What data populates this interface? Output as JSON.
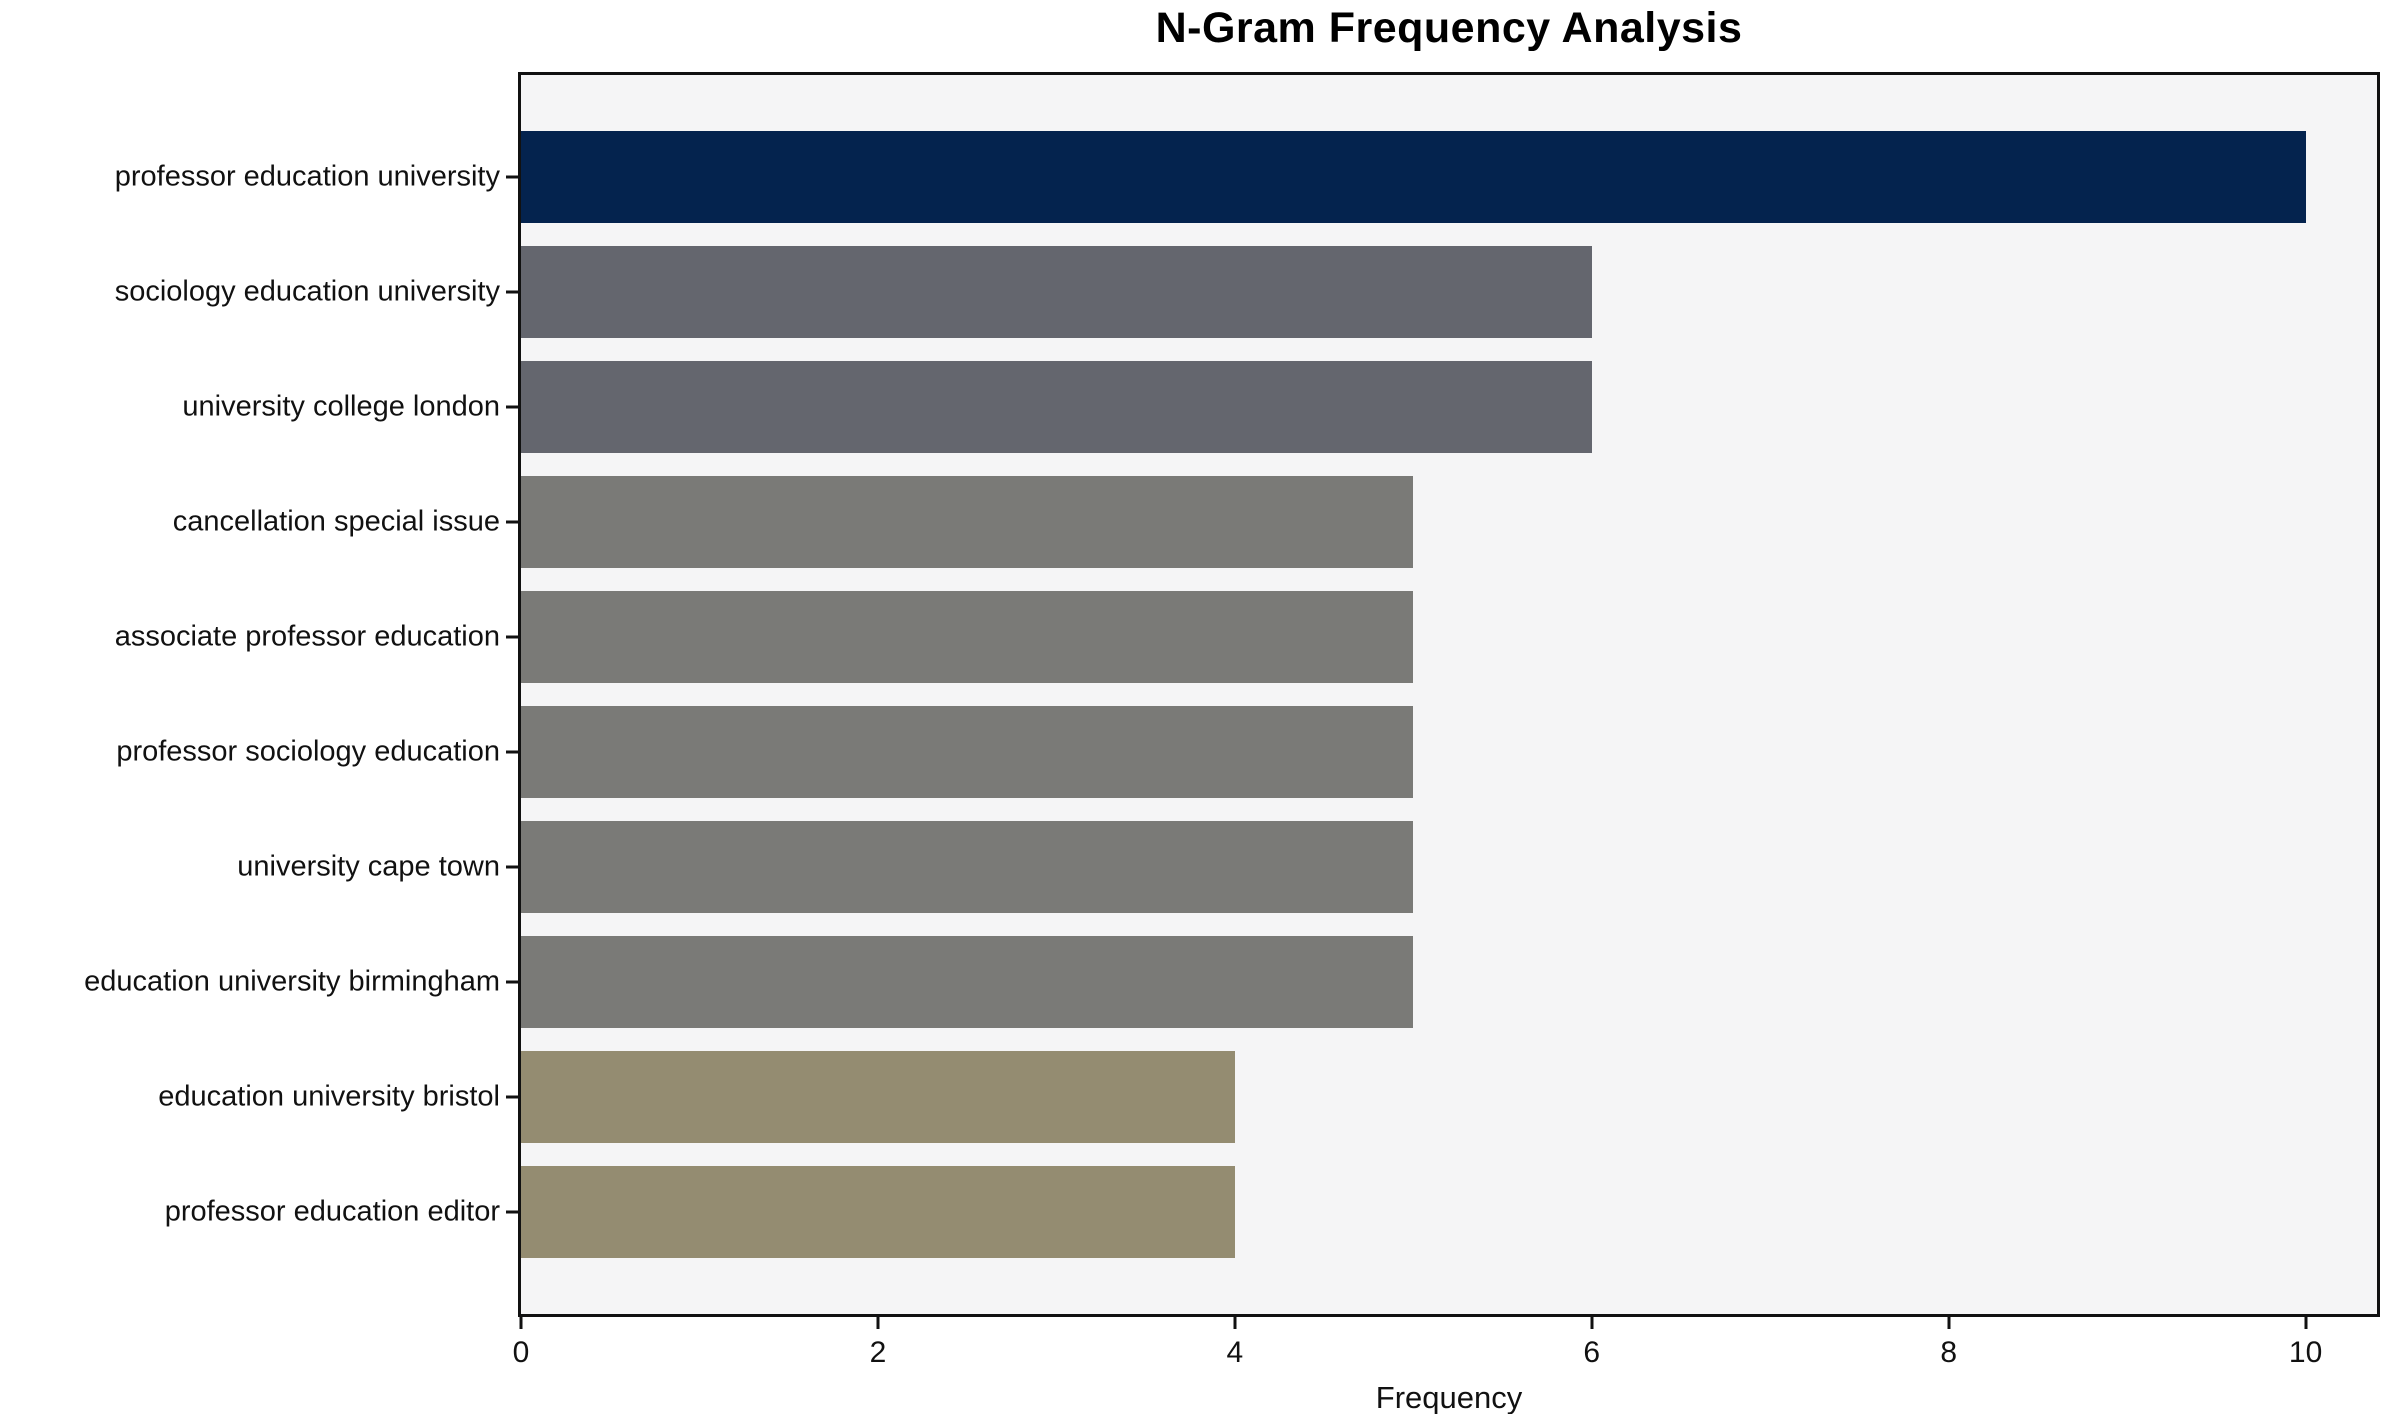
{
  "title": "N-Gram Frequency Analysis",
  "chart_data": {
    "type": "bar",
    "orientation": "horizontal",
    "title": "N-Gram Frequency Analysis",
    "categories": [
      "professor education university",
      "sociology education university",
      "university college london",
      "cancellation special issue",
      "associate professor education",
      "professor sociology education",
      "university cape town",
      "education university birmingham",
      "education university bristol",
      "professor education editor"
    ],
    "values": [
      10,
      6,
      6,
      5,
      5,
      5,
      5,
      5,
      4,
      4
    ],
    "bar_colors": [
      "#04234e",
      "#64666e",
      "#64666e",
      "#7a7a77",
      "#7a7a77",
      "#7a7a77",
      "#7a7a77",
      "#7a7a77",
      "#948c71",
      "#948c71"
    ],
    "xlabel": "Frequency",
    "ylabel": "",
    "x_ticks": [
      0,
      2,
      4,
      6,
      8,
      10
    ],
    "xlim": [
      0,
      10.4
    ],
    "grid": false,
    "legend": false,
    "plot_background": "#f5f5f6",
    "figure_background": "#ffffff",
    "spine_color": "#111111"
  }
}
